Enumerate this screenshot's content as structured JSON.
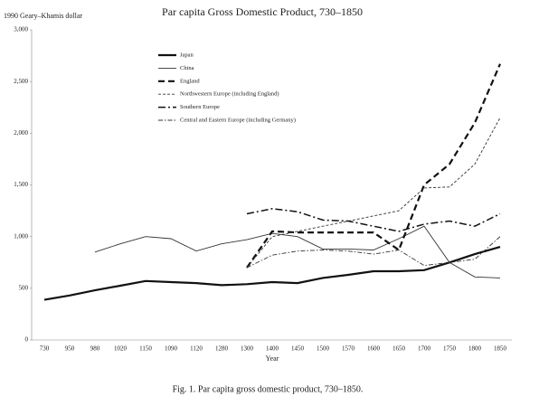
{
  "chart_data": {
    "type": "line",
    "title": "Par capita Gross Domestic Product, 730–1850",
    "y_label": "1990 Geary–Khamis dollar",
    "x_label": "Year",
    "caption": "Fig. 1. Par capita gross domestic product, 730–1850.",
    "categories": [
      "730",
      "950",
      "980",
      "1020",
      "1150",
      "1090",
      "1120",
      "1280",
      "1300",
      "1400",
      "1450",
      "1500",
      "1570",
      "1600",
      "1650",
      "1700",
      "1750",
      "1800",
      "1850"
    ],
    "ylim": [
      0,
      3000
    ],
    "yticks": [
      0,
      500,
      {
        "value": 1000,
        "label": "1,000"
      },
      {
        "value": 1500,
        "label": "1,500"
      },
      {
        "value": 2000,
        "label": "2,000"
      },
      {
        "value": 2500,
        "label": "2,500"
      },
      {
        "value": 3000,
        "label": "3,000"
      }
    ],
    "grid": false,
    "legend": "top-left",
    "series": [
      {
        "name": "Japan",
        "color": "#111111",
        "line_style": "solid-bold",
        "values": [
          388,
          430,
          480,
          525,
          570,
          560,
          550,
          530,
          540,
          560,
          550,
          600,
          630,
          665,
          665,
          675,
          750,
          830,
          900
        ]
      },
      {
        "name": "China",
        "color": "#333333",
        "line_style": "solid",
        "values": [
          null,
          null,
          850,
          930,
          1000,
          980,
          860,
          930,
          970,
          1030,
          1000,
          880,
          880,
          870,
          980,
          1100,
          750,
          610,
          600
        ]
      },
      {
        "name": "England",
        "color": "#111111",
        "line_style": "dashed-bold",
        "values": [
          null,
          null,
          null,
          null,
          null,
          null,
          null,
          null,
          700,
          1050,
          1040,
          1040,
          1040,
          1040,
          870,
          1500,
          1700,
          2100,
          2670
        ]
      },
      {
        "name": "Northwestern Europe (including England)",
        "color": "#333333",
        "line_style": "dashed",
        "values": [
          null,
          null,
          null,
          null,
          null,
          null,
          null,
          null,
          700,
          1000,
          1050,
          1100,
          1150,
          1200,
          1250,
          1470,
          1480,
          1700,
          2150
        ]
      },
      {
        "name": "Southern Europe",
        "color": "#111111",
        "line_style": "longdashdot",
        "values": [
          null,
          null,
          null,
          null,
          null,
          null,
          null,
          null,
          1220,
          1270,
          1240,
          1160,
          1150,
          1100,
          1050,
          1120,
          1150,
          1100,
          1220
        ]
      },
      {
        "name": "Central and Eastern Europe (including Germany)",
        "color": "#333333",
        "line_style": "dashdot",
        "values": [
          null,
          null,
          null,
          null,
          null,
          null,
          null,
          null,
          700,
          820,
          860,
          870,
          860,
          830,
          870,
          720,
          750,
          780,
          1000
        ]
      }
    ]
  }
}
